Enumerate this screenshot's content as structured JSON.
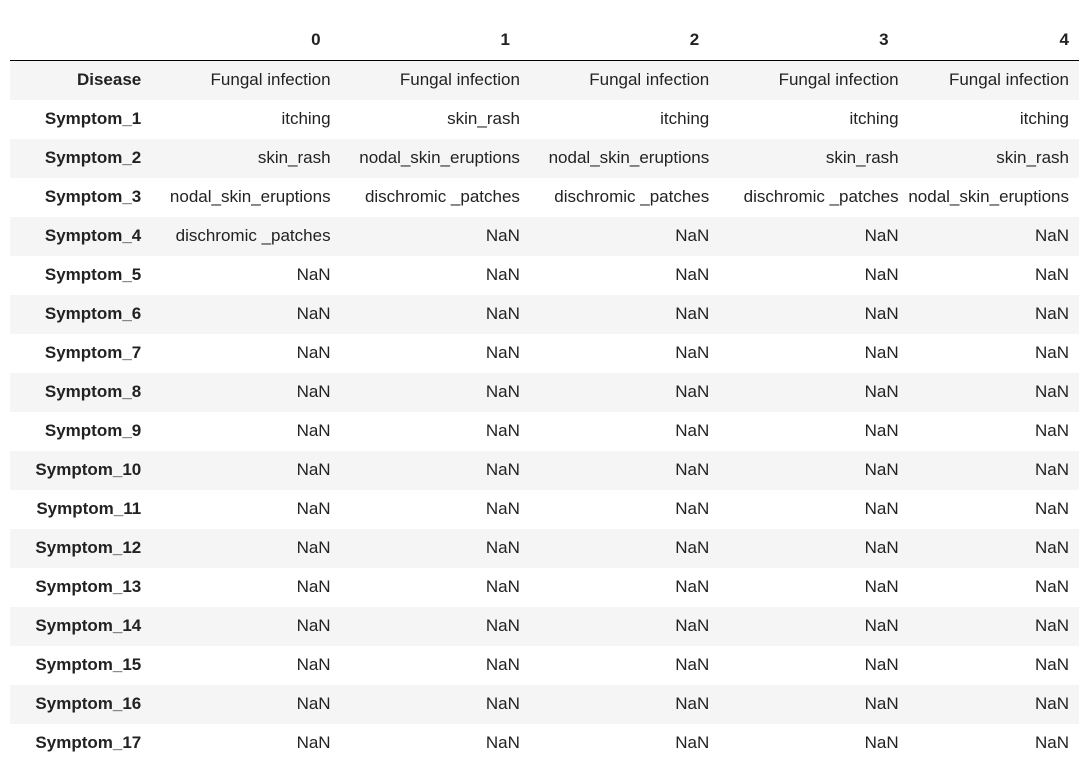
{
  "table": {
    "columns": [
      "0",
      "1",
      "2",
      "3",
      "4"
    ],
    "rows": [
      {
        "index": "Disease",
        "cells": [
          "Fungal infection",
          "Fungal infection",
          "Fungal infection",
          "Fungal infection",
          "Fungal infection"
        ]
      },
      {
        "index": "Symptom_1",
        "cells": [
          "itching",
          "skin_rash",
          "itching",
          "itching",
          "itching"
        ]
      },
      {
        "index": "Symptom_2",
        "cells": [
          "skin_rash",
          "nodal_skin_eruptions",
          "nodal_skin_eruptions",
          "skin_rash",
          "skin_rash"
        ]
      },
      {
        "index": "Symptom_3",
        "cells": [
          "nodal_skin_eruptions",
          "dischromic _patches",
          "dischromic _patches",
          "dischromic _patches",
          "nodal_skin_eruptions"
        ]
      },
      {
        "index": "Symptom_4",
        "cells": [
          "dischromic _patches",
          "NaN",
          "NaN",
          "NaN",
          "NaN"
        ]
      },
      {
        "index": "Symptom_5",
        "cells": [
          "NaN",
          "NaN",
          "NaN",
          "NaN",
          "NaN"
        ]
      },
      {
        "index": "Symptom_6",
        "cells": [
          "NaN",
          "NaN",
          "NaN",
          "NaN",
          "NaN"
        ]
      },
      {
        "index": "Symptom_7",
        "cells": [
          "NaN",
          "NaN",
          "NaN",
          "NaN",
          "NaN"
        ]
      },
      {
        "index": "Symptom_8",
        "cells": [
          "NaN",
          "NaN",
          "NaN",
          "NaN",
          "NaN"
        ]
      },
      {
        "index": "Symptom_9",
        "cells": [
          "NaN",
          "NaN",
          "NaN",
          "NaN",
          "NaN"
        ]
      },
      {
        "index": "Symptom_10",
        "cells": [
          "NaN",
          "NaN",
          "NaN",
          "NaN",
          "NaN"
        ]
      },
      {
        "index": "Symptom_11",
        "cells": [
          "NaN",
          "NaN",
          "NaN",
          "NaN",
          "NaN"
        ]
      },
      {
        "index": "Symptom_12",
        "cells": [
          "NaN",
          "NaN",
          "NaN",
          "NaN",
          "NaN"
        ]
      },
      {
        "index": "Symptom_13",
        "cells": [
          "NaN",
          "NaN",
          "NaN",
          "NaN",
          "NaN"
        ]
      },
      {
        "index": "Symptom_14",
        "cells": [
          "NaN",
          "NaN",
          "NaN",
          "NaN",
          "NaN"
        ]
      },
      {
        "index": "Symptom_15",
        "cells": [
          "NaN",
          "NaN",
          "NaN",
          "NaN",
          "NaN"
        ]
      },
      {
        "index": "Symptom_16",
        "cells": [
          "NaN",
          "NaN",
          "NaN",
          "NaN",
          "NaN"
        ]
      },
      {
        "index": "Symptom_17",
        "cells": [
          "NaN",
          "NaN",
          "NaN",
          "NaN",
          "NaN"
        ]
      }
    ]
  }
}
